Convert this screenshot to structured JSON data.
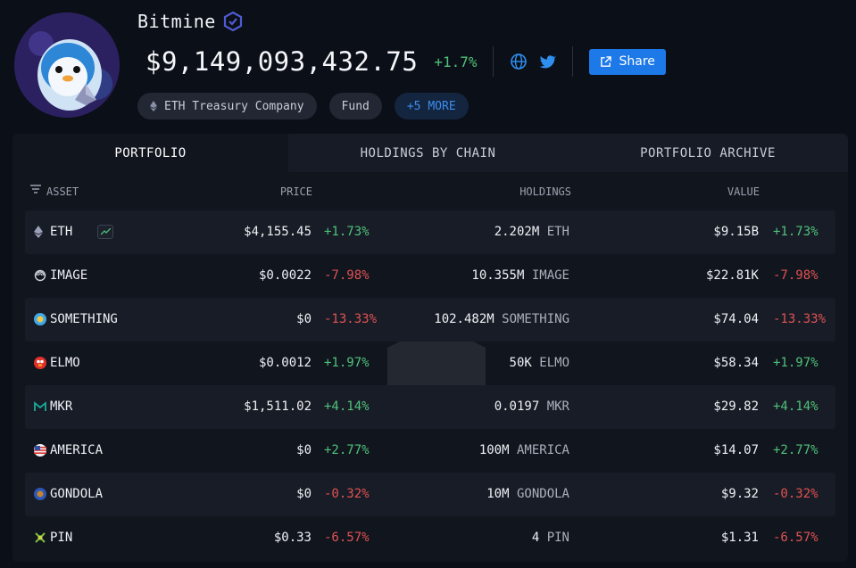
{
  "entity": {
    "name": "Bitmine",
    "total_value": "$9,149,093,432.75",
    "total_change": "+1.7%"
  },
  "share_label": "Share",
  "tags": [
    "ETH Treasury Company",
    "Fund",
    "+5 MORE"
  ],
  "tabs": [
    "PORTFOLIO",
    "HOLDINGS BY CHAIN",
    "PORTFOLIO ARCHIVE"
  ],
  "columns": {
    "asset": "ASSET",
    "price": "PRICE",
    "holdings": "HOLDINGS",
    "value": "VALUE"
  },
  "rows": [
    {
      "asset": "ETH",
      "price": "$4,155.45",
      "price_change": "+1.73%",
      "holdings": "2.202M",
      "unit": "ETH",
      "value": "$9.15B",
      "value_change": "+1.73%"
    },
    {
      "asset": "IMAGE",
      "price": "$0.0022",
      "price_change": "-7.98%",
      "holdings": "10.355M",
      "unit": "IMAGE",
      "value": "$22.81K",
      "value_change": "-7.98%"
    },
    {
      "asset": "SOMETHING",
      "price": "$0",
      "price_change": "-13.33%",
      "holdings": "102.482M",
      "unit": "SOMETHING",
      "value": "$74.04",
      "value_change": "-13.33%"
    },
    {
      "asset": "ELMO",
      "price": "$0.0012",
      "price_change": "+1.97%",
      "holdings": "50K",
      "unit": "ELMO",
      "value": "$58.34",
      "value_change": "+1.97%"
    },
    {
      "asset": "MKR",
      "price": "$1,511.02",
      "price_change": "+4.14%",
      "holdings": "0.0197",
      "unit": "MKR",
      "value": "$29.82",
      "value_change": "+4.14%"
    },
    {
      "asset": "AMERICA",
      "price": "$0",
      "price_change": "+2.77%",
      "holdings": "100M",
      "unit": "AMERICA",
      "value": "$14.07",
      "value_change": "+2.77%"
    },
    {
      "asset": "GONDOLA",
      "price": "$0",
      "price_change": "-0.32%",
      "holdings": "10M",
      "unit": "GONDOLA",
      "value": "$9.32",
      "value_change": "-0.32%"
    },
    {
      "asset": "PIN",
      "price": "$0.33",
      "price_change": "-6.57%",
      "holdings": "4",
      "unit": "PIN",
      "value": "$1.31",
      "value_change": "-6.57%"
    }
  ],
  "colors": {
    "positive": "#4fc27a",
    "negative": "#e05252",
    "accent": "#1d78e8"
  },
  "icons": {
    "verified": "verified-badge-icon",
    "globe": "globe-icon",
    "twitter": "twitter-icon",
    "share": "external-link-icon",
    "filter": "filter-lines-icon"
  }
}
